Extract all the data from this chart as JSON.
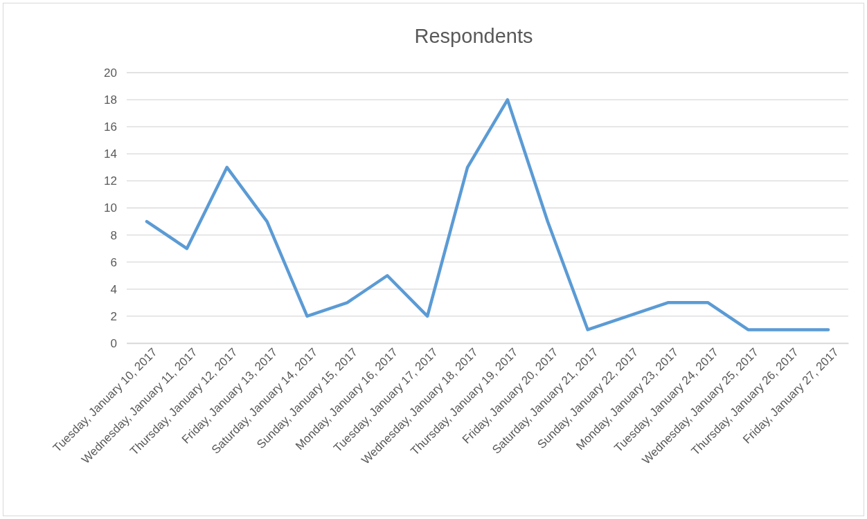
{
  "chart_data": {
    "type": "line",
    "title": "Respondents",
    "categories": [
      "Tuesday, January 10, 2017",
      "Wednesday, January 11, 2017",
      "Thursday, January 12, 2017",
      "Friday, January 13, 2017",
      "Saturday, January 14, 2017",
      "Sunday, January 15, 2017",
      "Monday, January 16, 2017",
      "Tuesday, January 17, 2017",
      "Wednesday, January 18, 2017",
      "Thursday, January 19, 2017",
      "Friday, January 20, 2017",
      "Saturday, January 21, 2017",
      "Sunday, January 22, 2017",
      "Monday, January 23, 2017",
      "Tuesday, January 24, 2017",
      "Wednesday, January 25, 2017",
      "Thursday, January 26, 2017",
      "Friday, January 27, 2017"
    ],
    "values": [
      9,
      7,
      13,
      9,
      2,
      3,
      5,
      2,
      13,
      18,
      9,
      1,
      2,
      3,
      3,
      1,
      1,
      1
    ],
    "color": "#5b9bd5",
    "ylim": [
      0,
      20
    ],
    "yticks": [
      0,
      2,
      4,
      6,
      8,
      10,
      12,
      14,
      16,
      18,
      20
    ],
    "grid": "y",
    "legend": false,
    "marker": "none",
    "line_style": "solid"
  }
}
